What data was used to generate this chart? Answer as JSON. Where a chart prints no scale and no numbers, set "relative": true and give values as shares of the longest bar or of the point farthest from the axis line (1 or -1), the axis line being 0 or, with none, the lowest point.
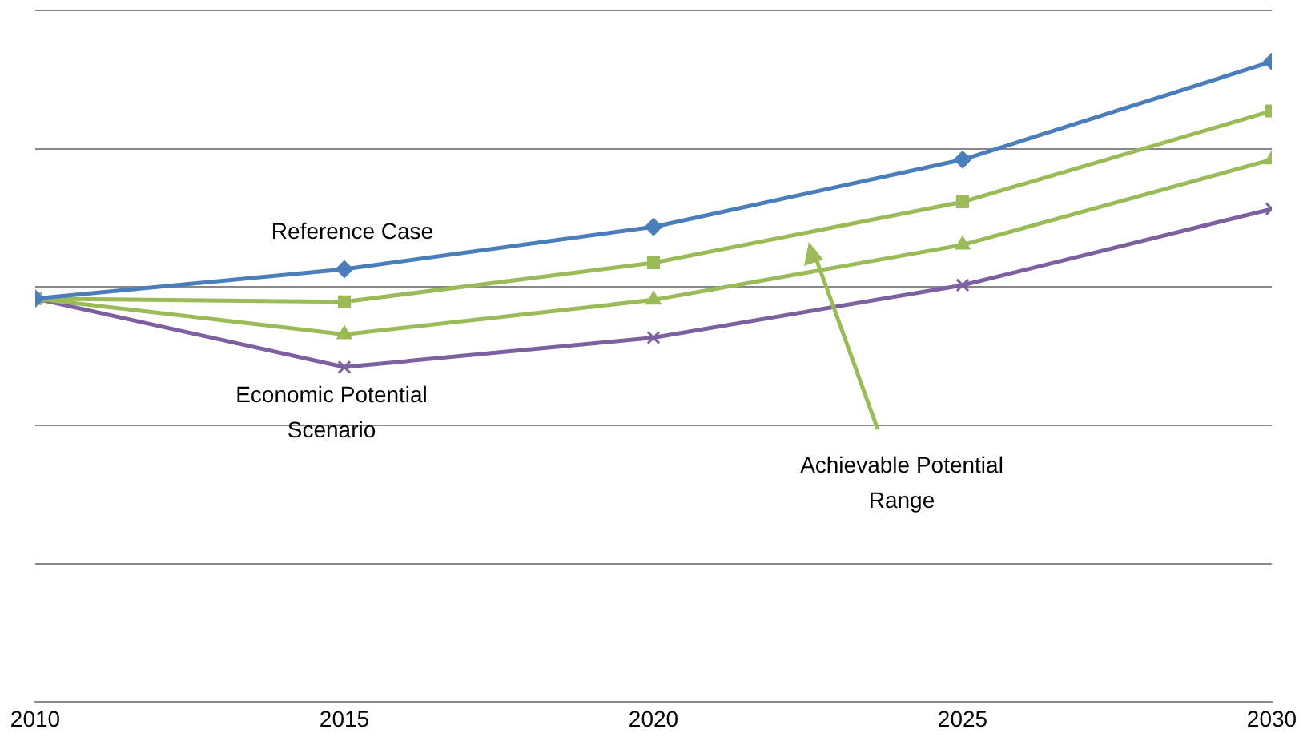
{
  "chart_data": {
    "type": "line",
    "relative": true,
    "x": [
      2010,
      2015,
      2020,
      2025,
      2030
    ],
    "xlim": [
      2010,
      2030
    ],
    "xticks": [
      2010,
      2015,
      2020,
      2025,
      2030
    ],
    "grid": "y",
    "legend": false,
    "series": [
      {
        "color": "#4a7ebb",
        "marker": "diamond",
        "values": [
          0.63,
          0.676,
          0.742,
          0.847,
          1
        ]
      },
      {
        "color": "#9bbb59",
        "marker": "square",
        "values": [
          0.63,
          0.625,
          0.686,
          0.781,
          0.923
        ]
      },
      {
        "color": "#9bbb59",
        "marker": "triangle",
        "values": [
          0.63,
          0.574,
          0.628,
          0.714,
          0.847
        ]
      },
      {
        "color": "#7d60a0",
        "marker": "cross",
        "values": [
          0.63,
          0.523,
          0.569,
          0.651,
          0.77
        ]
      }
    ],
    "annotations": [
      "Reference Case",
      "Economic Potential Scenario",
      "Achievable Potential Range"
    ]
  }
}
